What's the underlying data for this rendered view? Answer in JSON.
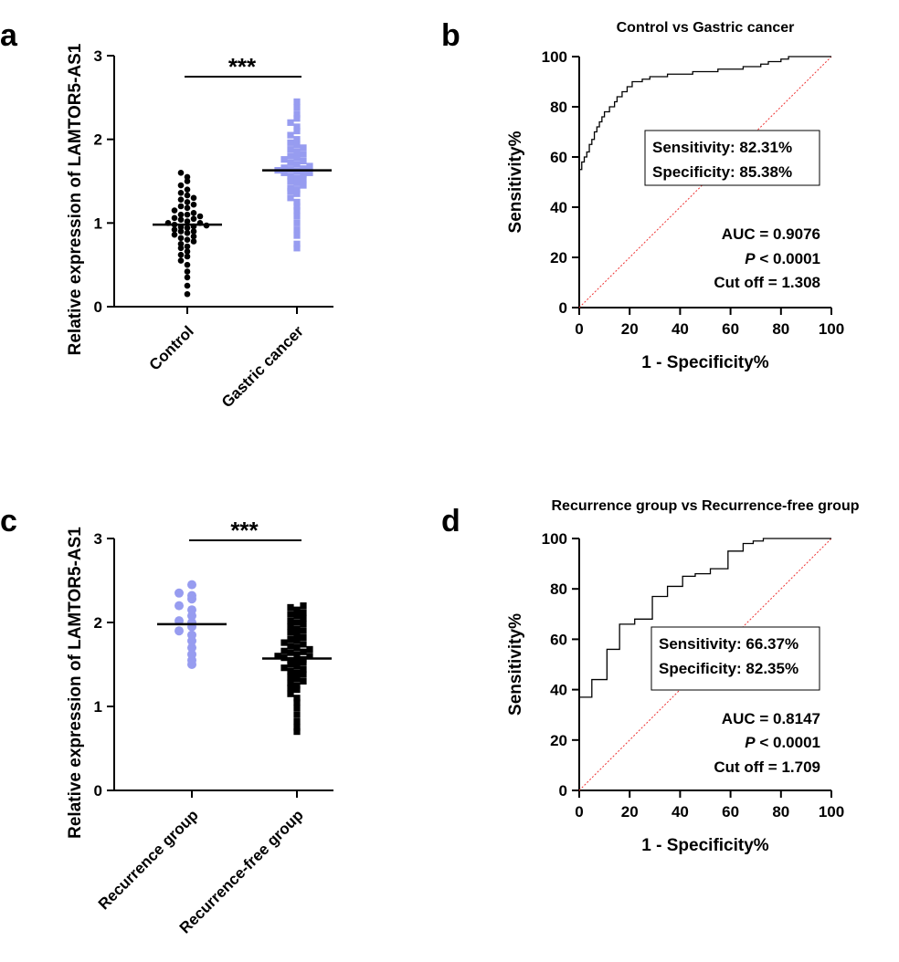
{
  "chart_data": [
    {
      "type": "strip",
      "panel": "a",
      "ylabel": "Relative expression of LAMTOR5-AS1",
      "categories": [
        "Control",
        "Gastric cancer"
      ],
      "ylim": [
        0,
        3
      ],
      "yticks": [
        0,
        1,
        2,
        3
      ],
      "significance": "***",
      "groups": [
        {
          "color": "#000000",
          "marker": "circle",
          "mean": 0.98,
          "values": [
            0.15,
            0.25,
            0.35,
            0.42,
            0.5,
            0.55,
            0.6,
            0.62,
            0.66,
            0.7,
            0.72,
            0.75,
            0.78,
            0.8,
            0.82,
            0.84,
            0.86,
            0.88,
            0.9,
            0.9,
            0.92,
            0.94,
            0.95,
            0.96,
            0.98,
            1.0,
            1.0,
            1.02,
            1.04,
            1.05,
            1.06,
            1.08,
            1.1,
            1.1,
            1.12,
            1.15,
            1.18,
            1.2,
            1.22,
            1.25,
            1.28,
            1.3,
            1.33,
            1.36,
            1.4,
            1.45,
            1.5,
            1.55,
            1.6,
            0.97
          ]
        },
        {
          "color": "#979cf0",
          "marker": "square",
          "mean": 1.63,
          "values": [
            0.7,
            0.75,
            0.85,
            0.92,
            1.0,
            1.08,
            1.15,
            1.2,
            1.25,
            1.3,
            1.35,
            1.38,
            1.4,
            1.42,
            1.45,
            1.48,
            1.5,
            1.52,
            1.54,
            1.56,
            1.58,
            1.6,
            1.6,
            1.62,
            1.64,
            1.65,
            1.66,
            1.68,
            1.7,
            1.72,
            1.74,
            1.76,
            1.78,
            1.8,
            1.82,
            1.85,
            1.88,
            1.9,
            1.93,
            1.96,
            2.0,
            2.05,
            2.1,
            2.15,
            2.2,
            2.25,
            2.3,
            2.38,
            2.45,
            1.63
          ]
        }
      ]
    },
    {
      "type": "roc",
      "panel": "b",
      "title": "Control vs Gastric cancer",
      "xlabel": "1 - Specificity%",
      "ylabel": "Sensitivity%",
      "xlim": [
        0,
        100
      ],
      "ylim": [
        0,
        100
      ],
      "xticks": [
        0,
        20,
        40,
        60,
        80,
        100
      ],
      "yticks": [
        0,
        20,
        40,
        60,
        80,
        100
      ],
      "color": "#000000",
      "x": [
        0,
        0,
        1,
        1,
        2,
        2,
        3,
        3,
        4,
        4,
        5,
        5,
        6,
        6,
        7,
        7,
        8,
        8,
        9,
        9,
        10,
        10,
        12,
        12,
        14,
        14,
        15,
        15,
        17,
        17,
        19,
        19,
        21,
        21,
        25,
        25,
        28,
        28,
        35,
        35,
        45,
        45,
        55,
        55,
        65,
        65,
        72,
        72,
        75,
        75,
        80,
        80,
        83,
        83,
        100
      ],
      "y": [
        52,
        55,
        55,
        58,
        58,
        60,
        60,
        62,
        62,
        65,
        65,
        67,
        67,
        70,
        70,
        72,
        72,
        74,
        74,
        76,
        76,
        78,
        78,
        80,
        80,
        82,
        82,
        84,
        84,
        86,
        86,
        88,
        88,
        90,
        90,
        91,
        91,
        92,
        92,
        93,
        93,
        94,
        94,
        95,
        95,
        96,
        96,
        97,
        97,
        98,
        98,
        99,
        99,
        100,
        100
      ],
      "box": [
        "Sensitivity: 82.31%",
        "Specificity: 85.38%"
      ],
      "auc": "AUC = 0.9076",
      "p_symbol": "P",
      "p_text": " < 0.0001",
      "cutoff": "Cut off = 1.308"
    },
    {
      "type": "strip",
      "panel": "c",
      "ylabel": "Relative expression of LAMTOR5-AS1",
      "categories": [
        "Recurrence group",
        "Recurrence-free group"
      ],
      "ylim": [
        0,
        3
      ],
      "yticks": [
        0,
        1,
        2,
        3
      ],
      "significance": "***",
      "groups": [
        {
          "color": "#979cf0",
          "marker": "circle",
          "mean": 1.98,
          "values": [
            1.5,
            1.55,
            1.62,
            1.7,
            1.78,
            1.85,
            1.9,
            1.95,
            2.0,
            2.02,
            2.08,
            2.15,
            2.2,
            2.28,
            2.32,
            2.35,
            2.45
          ]
        },
        {
          "color": "#000000",
          "marker": "square",
          "mean": 1.57,
          "values": [
            0.7,
            0.75,
            0.82,
            0.9,
            0.98,
            1.05,
            1.1,
            1.15,
            1.2,
            1.22,
            1.25,
            1.28,
            1.3,
            1.33,
            1.35,
            1.38,
            1.4,
            1.42,
            1.44,
            1.46,
            1.48,
            1.5,
            1.52,
            1.54,
            1.55,
            1.56,
            1.58,
            1.6,
            1.6,
            1.62,
            1.64,
            1.65,
            1.66,
            1.68,
            1.7,
            1.72,
            1.74,
            1.76,
            1.78,
            1.8,
            1.82,
            1.85,
            1.88,
            1.9,
            1.92,
            1.95,
            1.98,
            2.0,
            2.02,
            2.05,
            2.08,
            2.1,
            2.12,
            2.15,
            2.18,
            2.2
          ]
        }
      ]
    },
    {
      "type": "roc",
      "panel": "d",
      "title": "Recurrence group vs Recurrence-free group",
      "xlabel": "1 - Specificity%",
      "ylabel": "Sensitivity%",
      "xlim": [
        0,
        100
      ],
      "ylim": [
        0,
        100
      ],
      "xticks": [
        0,
        20,
        40,
        60,
        80,
        100
      ],
      "yticks": [
        0,
        20,
        40,
        60,
        80,
        100
      ],
      "color": "#000000",
      "x": [
        0,
        5,
        5,
        11,
        11,
        16,
        16,
        22,
        22,
        29,
        29,
        35,
        35,
        41,
        41,
        46,
        46,
        52,
        52,
        59,
        59,
        65,
        65,
        69,
        69,
        73,
        73,
        100
      ],
      "y": [
        37,
        37,
        44,
        44,
        56,
        56,
        66,
        66,
        68,
        68,
        77,
        77,
        81,
        81,
        85,
        85,
        86,
        86,
        88,
        88,
        95,
        95,
        98,
        98,
        99,
        99,
        100,
        100
      ],
      "box": [
        "Sensitivity: 66.37%",
        "Specificity: 82.35%"
      ],
      "auc": "AUC = 0.8147",
      "p_symbol": "P",
      "p_text": " < 0.0001",
      "cutoff": "Cut off = 1.709"
    }
  ]
}
